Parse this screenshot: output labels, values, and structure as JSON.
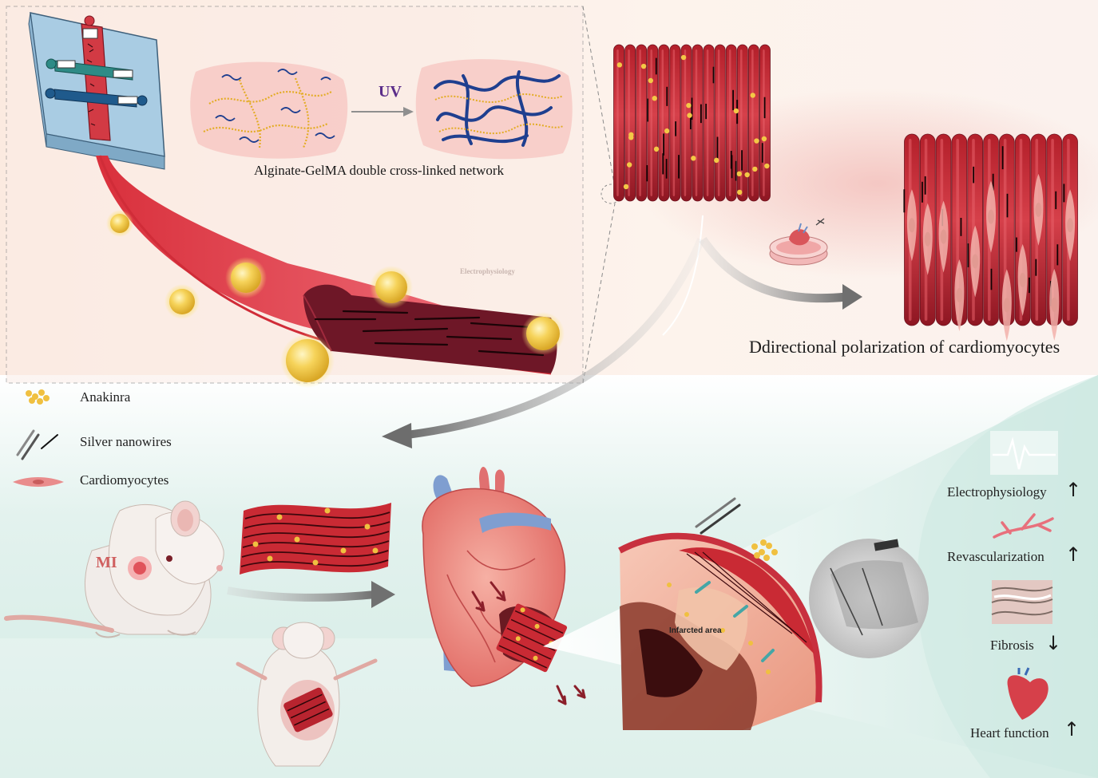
{
  "network": {
    "uv_label": "UV",
    "caption": "Alginate-GelMA double cross-linked network"
  },
  "polarization_caption": "Ddirectional polarization of cardiomyocytes",
  "faint_label": "Electrophysiology",
  "legend": {
    "anakinra": "Anakinra",
    "nanowires": "Silver nanowires",
    "cardiomyocytes": "Cardiomyocytes"
  },
  "mi_label": "MI",
  "infarct_label": "Infarcted area",
  "outcomes": [
    {
      "label": "Electrophysiology",
      "direction": "up",
      "glyph": "↑"
    },
    {
      "label": "Revascularization",
      "direction": "up",
      "glyph": "↑"
    },
    {
      "label": "Fibrosis",
      "direction": "down",
      "glyph": "↓"
    },
    {
      "label": "Heart function",
      "direction": "up",
      "glyph": "↑"
    }
  ],
  "colors": {
    "muscle_red": "#c1272d",
    "muscle_dark": "#7a1a2a",
    "fiber_pink": "#ea5a66",
    "gold": "#f0c040",
    "chip_blue": "#a9cce3",
    "channel_teal": "#2e8b86",
    "channel_navy": "#1f5a8c",
    "polymer_blue": "#1f3f8f",
    "gelma_yellow": "#e5b42b",
    "mint_bg": "#d9efe9"
  }
}
